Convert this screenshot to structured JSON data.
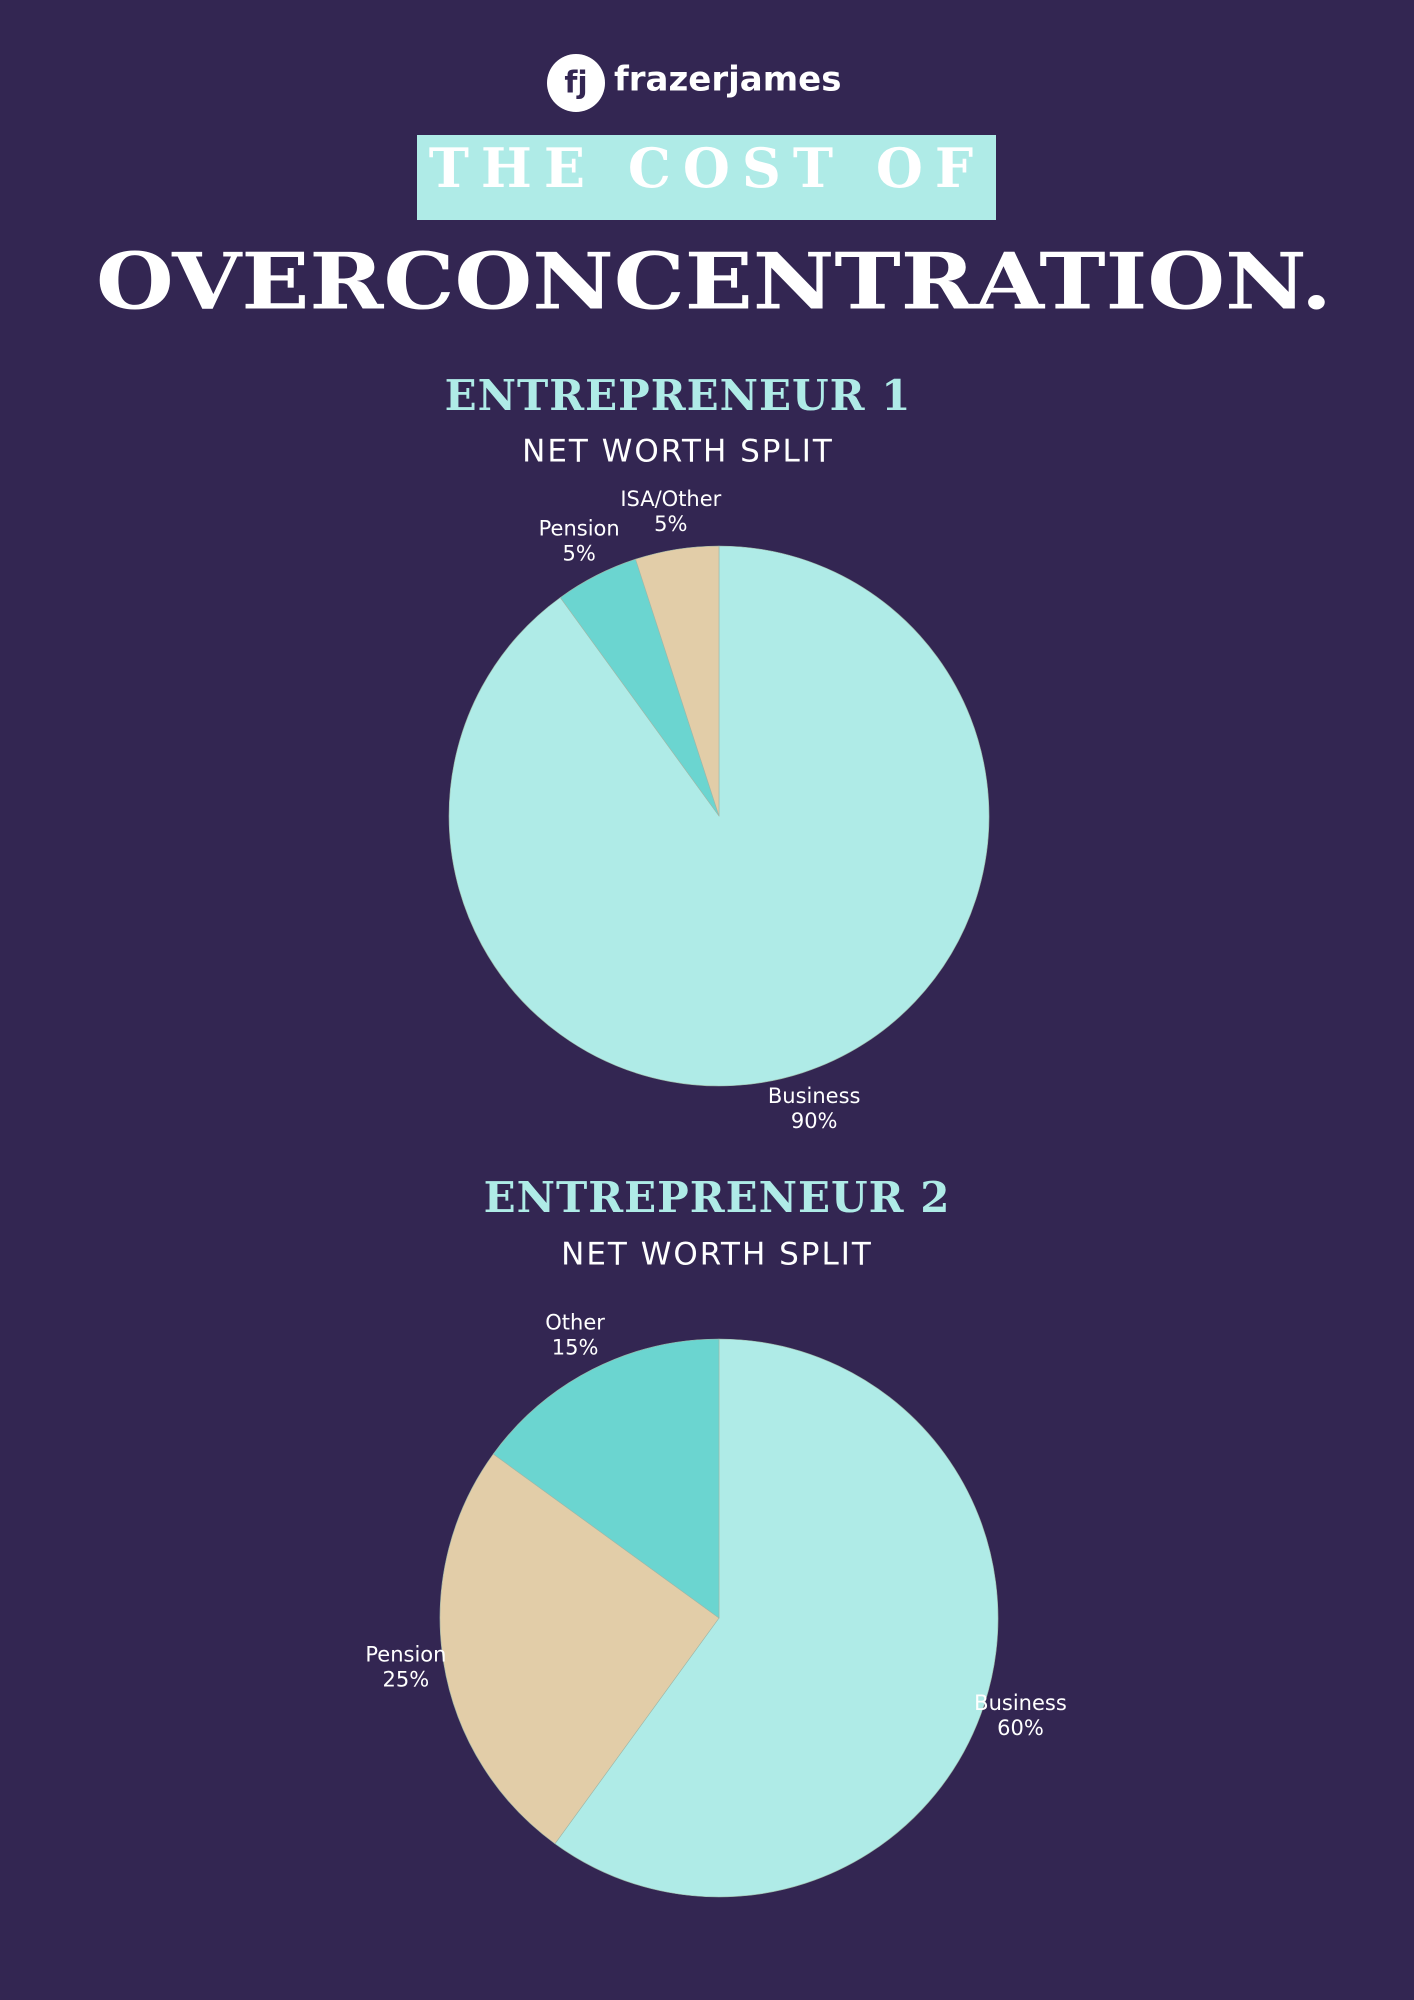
{
  "logo_mark": "fj",
  "logo_text": "frazerjames",
  "title_line1": "THE COST OF",
  "title_line2": "OVERCONCENTRATION.",
  "chart_data": [
    {
      "type": "pie",
      "title": "ENTREPRENEUR 1",
      "subtitle": "NET WORTH SPLIT",
      "categories": [
        "Business",
        "Pension",
        "ISA/Other"
      ],
      "values": [
        90,
        5,
        5
      ],
      "value_labels": [
        "90%",
        "5%",
        "5%"
      ],
      "colors": [
        "#afebe7",
        "#6bd5d0",
        "#e2cda8"
      ]
    },
    {
      "type": "pie",
      "title": "ENTREPRENEUR 2",
      "subtitle": "NET WORTH SPLIT",
      "categories": [
        "Business",
        "Pension",
        "Other"
      ],
      "values": [
        60,
        25,
        15
      ],
      "value_labels": [
        "60%",
        "25%",
        "15%"
      ],
      "colors": [
        "#afebe7",
        "#e2cda8",
        "#6bd5d0"
      ]
    }
  ]
}
